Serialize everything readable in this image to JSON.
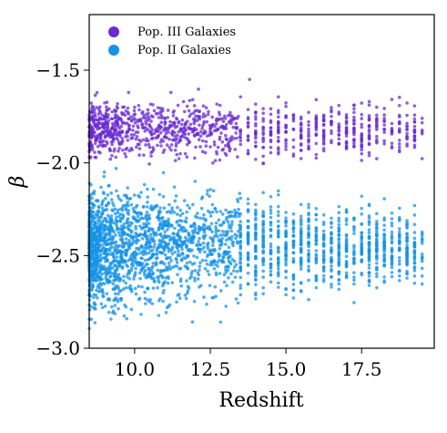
{
  "chart_data": {
    "type": "scatter",
    "xlabel": "Redshift",
    "ylabel": "β",
    "xlim": [
      8.5,
      19.9
    ],
    "ylim": [
      -3.0,
      -1.2
    ],
    "x_ticks": [
      10.0,
      12.5,
      15.0,
      17.5
    ],
    "x_tick_labels": [
      "10.0",
      "12.5",
      "15.0",
      "17.5"
    ],
    "y_ticks": [
      -3.0,
      -2.5,
      -2.0,
      -1.5
    ],
    "y_tick_labels": [
      "−3.0",
      "−2.5",
      "−2.0",
      "−1.5"
    ],
    "grid": false,
    "legend_position": "top-left",
    "series": [
      {
        "name": "Pop. III Galaxies",
        "color": "#6a2bd0",
        "x_range": [
          8.5,
          19.5
        ],
        "y_center": -1.82,
        "y_spread": 0.13,
        "points": [
          [
            9.0,
            -1.75
          ],
          [
            9.5,
            -1.85
          ],
          [
            10.0,
            -1.7
          ],
          [
            10.5,
            -1.8
          ],
          [
            11.0,
            -1.78
          ],
          [
            11.5,
            -1.88
          ],
          [
            12.0,
            -1.72
          ],
          [
            12.5,
            -1.83
          ],
          [
            13.0,
            -1.76
          ],
          [
            13.5,
            -1.9
          ],
          [
            14.0,
            -1.8
          ],
          [
            15.0,
            -1.75
          ],
          [
            16.0,
            -1.85
          ],
          [
            17.0,
            -1.78
          ],
          [
            18.0,
            -1.82
          ],
          [
            19.0,
            -1.8
          ],
          [
            9.2,
            -1.98
          ],
          [
            9.8,
            -1.62
          ],
          [
            11.2,
            -1.62
          ],
          [
            13.8,
            -1.55
          ]
        ]
      },
      {
        "name": "Pop. II Galaxies",
        "color": "#1793e6",
        "x_range": [
          8.5,
          19.5
        ],
        "y_center": -2.45,
        "y_spread": 0.2,
        "points": [
          [
            9.0,
            -2.4
          ],
          [
            9.5,
            -2.55
          ],
          [
            10.0,
            -2.3
          ],
          [
            10.5,
            -2.6
          ],
          [
            11.0,
            -2.45
          ],
          [
            11.5,
            -2.5
          ],
          [
            12.0,
            -2.35
          ],
          [
            12.5,
            -2.55
          ],
          [
            13.0,
            -2.48
          ],
          [
            13.5,
            -2.52
          ],
          [
            14.0,
            -2.45
          ],
          [
            15.0,
            -2.5
          ],
          [
            16.0,
            -2.4
          ],
          [
            17.0,
            -2.55
          ],
          [
            18.0,
            -2.45
          ],
          [
            19.0,
            -2.6
          ],
          [
            9.0,
            -2.05
          ],
          [
            9.3,
            -2.8
          ],
          [
            10.5,
            -2.75
          ],
          [
            12.0,
            -2.1
          ]
        ]
      }
    ]
  }
}
